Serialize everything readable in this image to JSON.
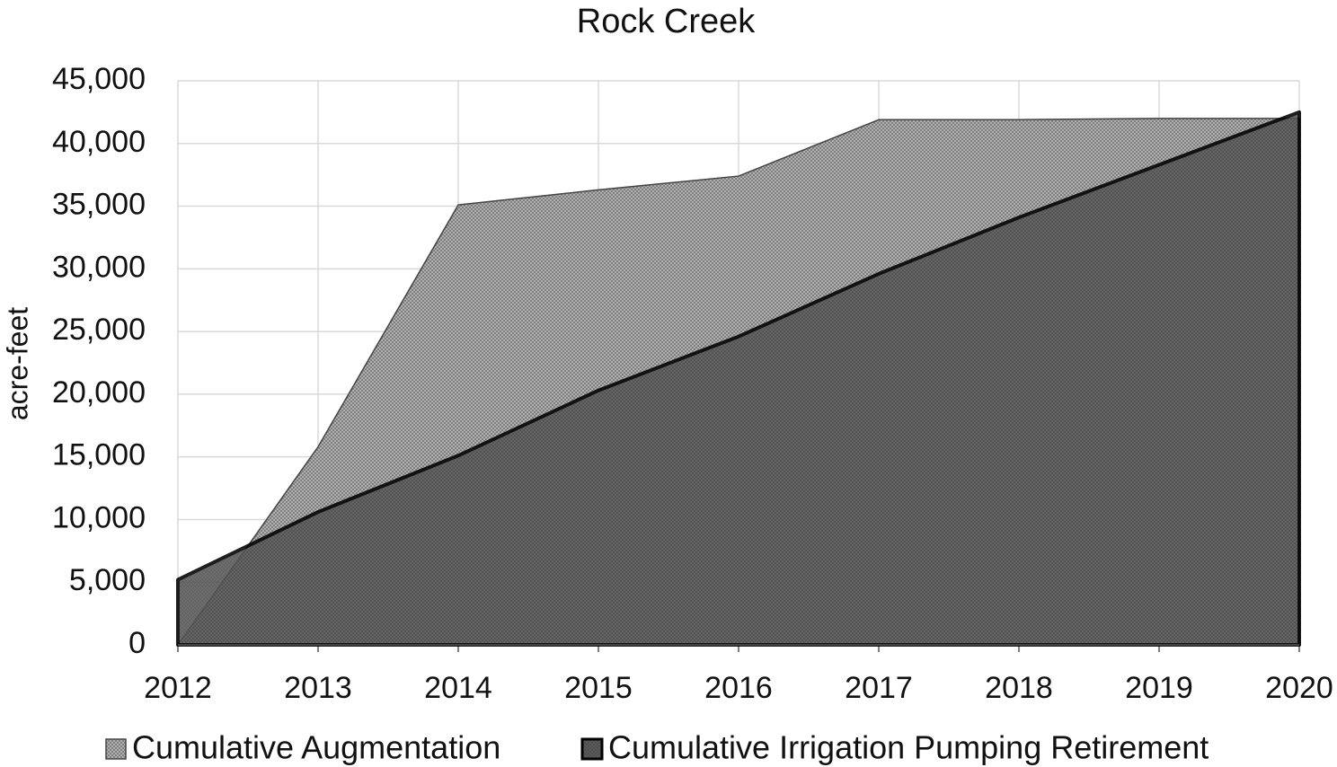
{
  "chart_data": {
    "type": "area",
    "title": "Rock Creek",
    "y_label": "acre-feet",
    "x": [
      2012,
      2013,
      2014,
      2015,
      2016,
      2017,
      2018,
      2019,
      2020
    ],
    "series": [
      {
        "name": "Cumulative Augmentation",
        "color": "#b0b0b0",
        "values": [
          0,
          15800,
          35100,
          36300,
          37400,
          41900,
          41900,
          42000,
          42000
        ]
      },
      {
        "name": "Cumulative Irrigation Pumping Retirement",
        "color": "#5a5a5a",
        "values": [
          5200,
          10600,
          15100,
          20300,
          24600,
          29600,
          34100,
          38300,
          42500
        ]
      }
    ],
    "xlim": [
      2012,
      2020
    ],
    "xticks": [
      2012,
      2013,
      2014,
      2015,
      2016,
      2017,
      2018,
      2019,
      2020
    ],
    "ylim": [
      0,
      45000
    ],
    "yticks": [
      0,
      {
        "value": 5000,
        "label": "5,000"
      },
      {
        "value": 10000,
        "label": "10,000"
      },
      {
        "value": 15000,
        "label": "15,000"
      },
      {
        "value": 20000,
        "label": "20,000"
      },
      {
        "value": 25000,
        "label": "25,000"
      },
      {
        "value": 30000,
        "label": "30,000"
      },
      {
        "value": 35000,
        "label": "35,000"
      },
      {
        "value": 40000,
        "label": "40,000"
      },
      {
        "value": 45000,
        "label": "45,000"
      }
    ],
    "grid": true,
    "legend": "bottom"
  }
}
